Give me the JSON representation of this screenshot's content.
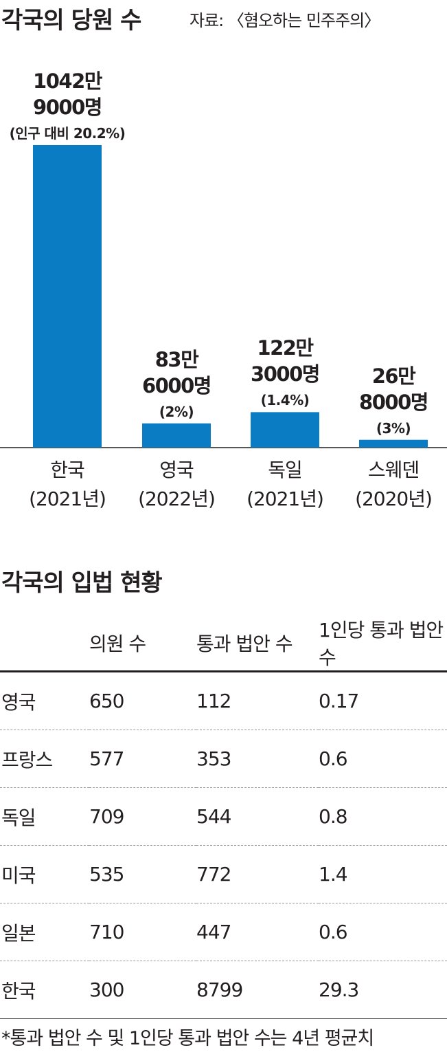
{
  "chart1": {
    "title": "각국의 당원 수",
    "source": "자료: 〈혐오하는 민주주의〉",
    "bar_color": "#0a7cc4",
    "chart_data": {
      "type": "bar",
      "categories": [
        "한국",
        "영국",
        "독일",
        "스웨덴"
      ],
      "years": [
        "(2021년)",
        "(2022년)",
        "(2021년)",
        "(2020년)"
      ],
      "values": [
        10429000,
        836000,
        1223000,
        268000
      ],
      "value_labels": [
        [
          "1042만",
          "9000명"
        ],
        [
          "83만",
          "6000명"
        ],
        [
          "122만",
          "3000명"
        ],
        [
          "26만",
          "8000명"
        ]
      ],
      "pct_labels": [
        "(인구 대비 20.2%)",
        "(2%)",
        "(1.4%)",
        "(3%)"
      ]
    }
  },
  "table": {
    "title": "각국의 입법 현황",
    "headers": [
      "",
      "의원 수",
      "통과 법안 수",
      "1인당 통과 법안 수"
    ],
    "rows": [
      [
        "영국",
        "650",
        "112",
        "0.17"
      ],
      [
        "프랑스",
        "577",
        "353",
        "0.6"
      ],
      [
        "독일",
        "709",
        "544",
        "0.8"
      ],
      [
        "미국",
        "535",
        "772",
        "1.4"
      ],
      [
        "일본",
        "710",
        "447",
        "0.6"
      ],
      [
        "한국",
        "300",
        "8799",
        "29.3"
      ]
    ],
    "note": "*통과 법안 수 및 1인당 통과 법안 수는 4년 평균치"
  }
}
